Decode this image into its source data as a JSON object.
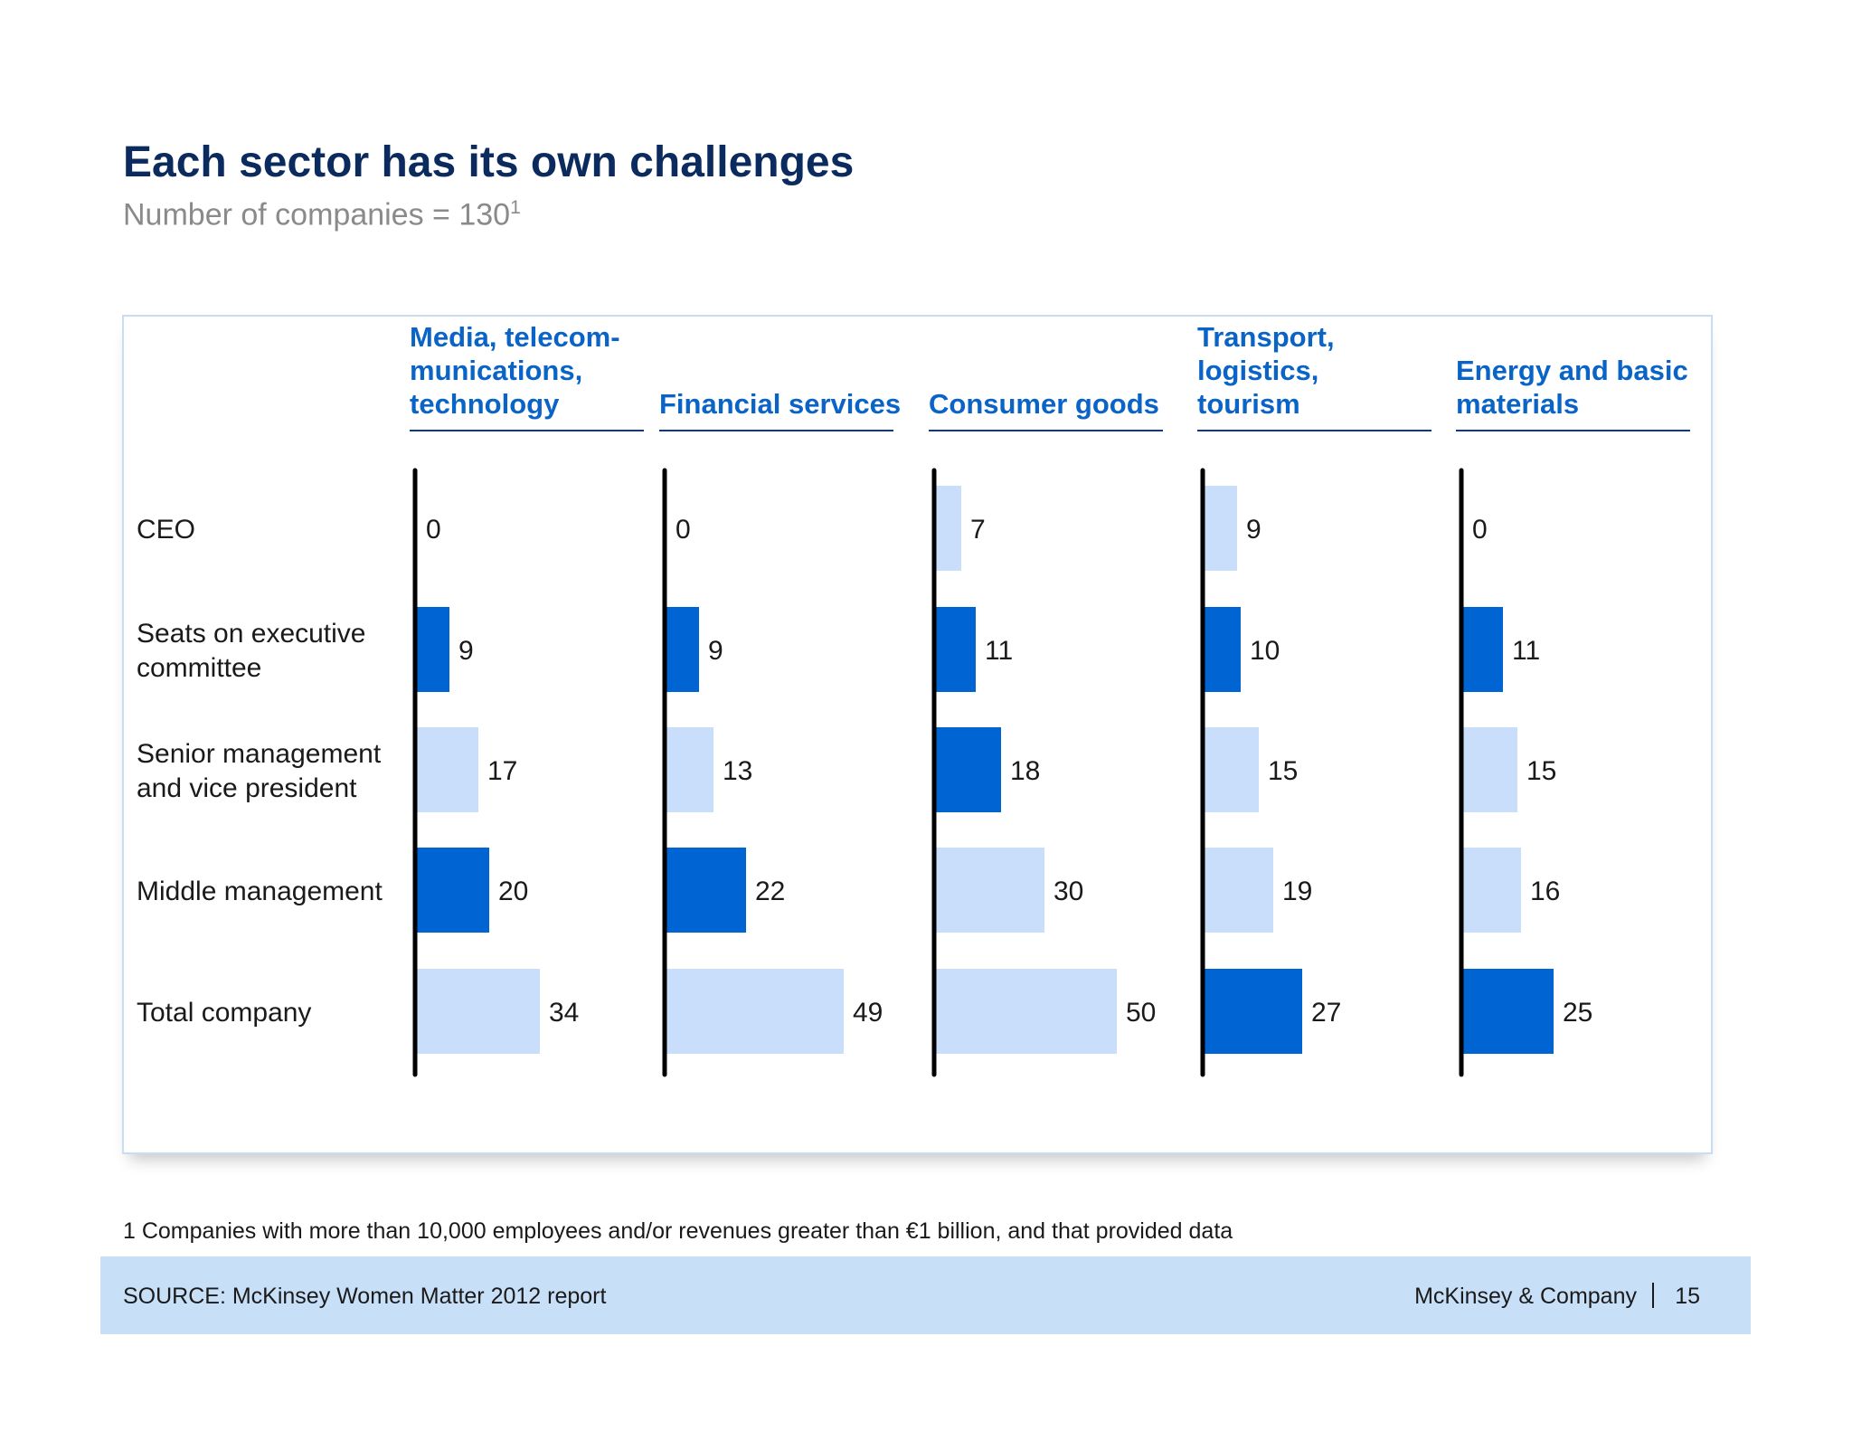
{
  "title": "Each sector has its own challenges",
  "subtitle": "Number of companies = 130",
  "subtitle_sup": "1",
  "footnote": "1 Companies with more than 10,000 employees and/or revenues greater than €1 billion, and that provided data",
  "footer": {
    "source": "SOURCE: McKinsey Women Matter 2012 report",
    "company": "McKinsey & Company",
    "page": "15"
  },
  "colors": {
    "title": "#0b2a5e",
    "header": "#0a64c8",
    "dark_bar": "#0064d2",
    "light_bar": "#c9defa",
    "footer_bg": "#c8dff8"
  },
  "chart_data": {
    "type": "bar",
    "orientation": "horizontal",
    "categories": [
      "CEO",
      "Seats on executive committee",
      "Senior management and vice president",
      "Middle management",
      "Total company"
    ],
    "category_lines": [
      [
        "CEO"
      ],
      [
        "Seats on executive",
        "committee"
      ],
      [
        "Senior management",
        "and vice president"
      ],
      [
        "Middle management"
      ],
      [
        "Total company"
      ]
    ],
    "series": [
      {
        "name": "Media, telecom-munications, technology",
        "header_lines": [
          "Media, telecom-",
          "munications,",
          "technology"
        ],
        "values": [
          0,
          9,
          17,
          20,
          34
        ],
        "highlight": [
          "light",
          "dark",
          "light",
          "dark",
          "light"
        ]
      },
      {
        "name": "Financial services",
        "header_lines": [
          "Financial services"
        ],
        "values": [
          0,
          9,
          13,
          22,
          49
        ],
        "highlight": [
          "light",
          "dark",
          "light",
          "dark",
          "light"
        ]
      },
      {
        "name": "Consumer goods",
        "header_lines": [
          "Consumer goods"
        ],
        "values": [
          7,
          11,
          18,
          30,
          50
        ],
        "highlight": [
          "light",
          "dark",
          "dark",
          "light",
          "light"
        ]
      },
      {
        "name": "Transport, logistics, tourism",
        "header_lines": [
          "Transport,",
          "logistics,",
          "tourism"
        ],
        "values": [
          9,
          10,
          15,
          19,
          27
        ],
        "highlight": [
          "light",
          "dark",
          "light",
          "light",
          "dark"
        ]
      },
      {
        "name": "Energy and basic materials",
        "header_lines": [
          "Energy and basic",
          "materials"
        ],
        "values": [
          0,
          11,
          15,
          16,
          25
        ],
        "highlight": [
          "light",
          "dark",
          "light",
          "light",
          "dark"
        ]
      }
    ]
  }
}
